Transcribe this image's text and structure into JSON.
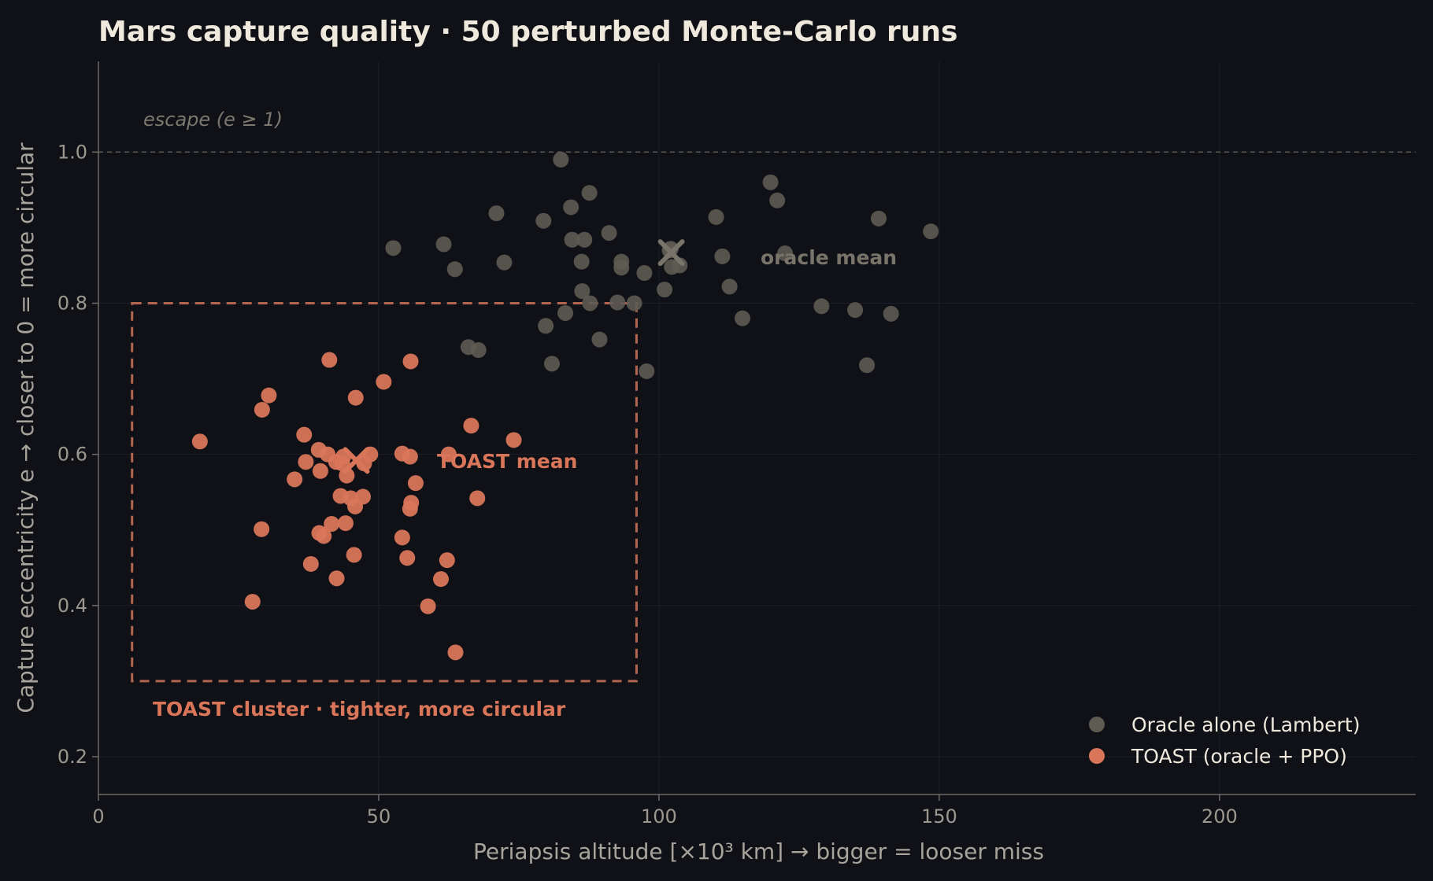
{
  "chart_data": {
    "type": "scatter",
    "title": "Mars capture quality  ·  50 perturbed Monte-Carlo runs",
    "xlabel": "Periapsis altitude  [×10³ km]   →  bigger = looser miss",
    "ylabel": "Capture eccentricity   e   →  closer to 0 = more circular",
    "xlim": [
      0,
      235
    ],
    "ylim": [
      0.15,
      1.12
    ],
    "xticks": [
      "0",
      "50",
      "100",
      "150",
      "200"
    ],
    "yticks": [
      "0.2",
      "0.4",
      "0.6",
      "0.8",
      "1.0"
    ],
    "grid": true,
    "legend_position": "lower-right",
    "series": [
      {
        "name": "Oracle alone  (Lambert)",
        "color": "#5e5b53",
        "points": [
          [
            52.6,
            0.873
          ],
          [
            61.6,
            0.878
          ],
          [
            63.6,
            0.845
          ],
          [
            66.0,
            0.742
          ],
          [
            67.8,
            0.738
          ],
          [
            71.0,
            0.919
          ],
          [
            72.4,
            0.854
          ],
          [
            79.4,
            0.909
          ],
          [
            79.8,
            0.77
          ],
          [
            80.9,
            0.72
          ],
          [
            82.5,
            0.99
          ],
          [
            83.3,
            0.787
          ],
          [
            84.3,
            0.927
          ],
          [
            84.5,
            0.884
          ],
          [
            86.2,
            0.855
          ],
          [
            86.3,
            0.816
          ],
          [
            86.7,
            0.884
          ],
          [
            87.6,
            0.946
          ],
          [
            87.7,
            0.8
          ],
          [
            89.4,
            0.752
          ],
          [
            91.1,
            0.893
          ],
          [
            92.6,
            0.801
          ],
          [
            93.3,
            0.855
          ],
          [
            93.3,
            0.847
          ],
          [
            95.6,
            0.8
          ],
          [
            97.4,
            0.84
          ],
          [
            97.8,
            0.71
          ],
          [
            101.0,
            0.818
          ],
          [
            101.9,
            0.87
          ],
          [
            102.1,
            0.872
          ],
          [
            102.3,
            0.848
          ],
          [
            103.7,
            0.85
          ],
          [
            110.2,
            0.914
          ],
          [
            111.3,
            0.862
          ],
          [
            112.6,
            0.822
          ],
          [
            114.9,
            0.78
          ],
          [
            119.9,
            0.96
          ],
          [
            121.1,
            0.936
          ],
          [
            122.5,
            0.866
          ],
          [
            129.0,
            0.796
          ],
          [
            135.0,
            0.791
          ],
          [
            137.1,
            0.718
          ],
          [
            139.2,
            0.912
          ],
          [
            141.4,
            0.786
          ],
          [
            148.5,
            0.895
          ]
        ],
        "mean": [
          102.2,
          0.867
        ],
        "mean_label": "oracle mean"
      },
      {
        "name": "TOAST  (oracle + PPO)",
        "color": "#d9765a",
        "points": [
          [
            18.1,
            0.617
          ],
          [
            27.5,
            0.405
          ],
          [
            29.1,
            0.501
          ],
          [
            29.2,
            0.659
          ],
          [
            30.4,
            0.678
          ],
          [
            35.0,
            0.567
          ],
          [
            36.7,
            0.626
          ],
          [
            37.0,
            0.59
          ],
          [
            37.9,
            0.455
          ],
          [
            39.3,
            0.606
          ],
          [
            39.4,
            0.496
          ],
          [
            39.6,
            0.578
          ],
          [
            40.2,
            0.492
          ],
          [
            40.9,
            0.6
          ],
          [
            41.2,
            0.725
          ],
          [
            41.6,
            0.508
          ],
          [
            42.4,
            0.59
          ],
          [
            42.5,
            0.436
          ],
          [
            43.2,
            0.545
          ],
          [
            43.5,
            0.588
          ],
          [
            43.7,
            0.597
          ],
          [
            44.1,
            0.509
          ],
          [
            44.3,
            0.572
          ],
          [
            45.0,
            0.542
          ],
          [
            45.6,
            0.467
          ],
          [
            45.8,
            0.531
          ],
          [
            45.9,
            0.675
          ],
          [
            47.2,
            0.544
          ],
          [
            47.4,
            0.588
          ],
          [
            48.5,
            0.6
          ],
          [
            50.9,
            0.696
          ],
          [
            54.2,
            0.49
          ],
          [
            54.2,
            0.601
          ],
          [
            55.1,
            0.463
          ],
          [
            55.6,
            0.597
          ],
          [
            55.6,
            0.528
          ],
          [
            55.7,
            0.723
          ],
          [
            55.8,
            0.536
          ],
          [
            56.6,
            0.562
          ],
          [
            58.8,
            0.399
          ],
          [
            61.1,
            0.435
          ],
          [
            62.2,
            0.46
          ],
          [
            62.5,
            0.6
          ],
          [
            63.7,
            0.338
          ],
          [
            66.5,
            0.638
          ],
          [
            67.6,
            0.542
          ],
          [
            74.1,
            0.619
          ]
        ],
        "mean": [
          46.0,
          0.592
        ],
        "mean_label": "TOAST mean"
      }
    ],
    "reference_line": {
      "y": 1.0,
      "label": "escape  (e ≥ 1)"
    },
    "highlight_box": {
      "x": [
        6,
        96
      ],
      "y": [
        0.3,
        0.8
      ],
      "label": "TOAST cluster  ·  tighter, more circular"
    }
  }
}
